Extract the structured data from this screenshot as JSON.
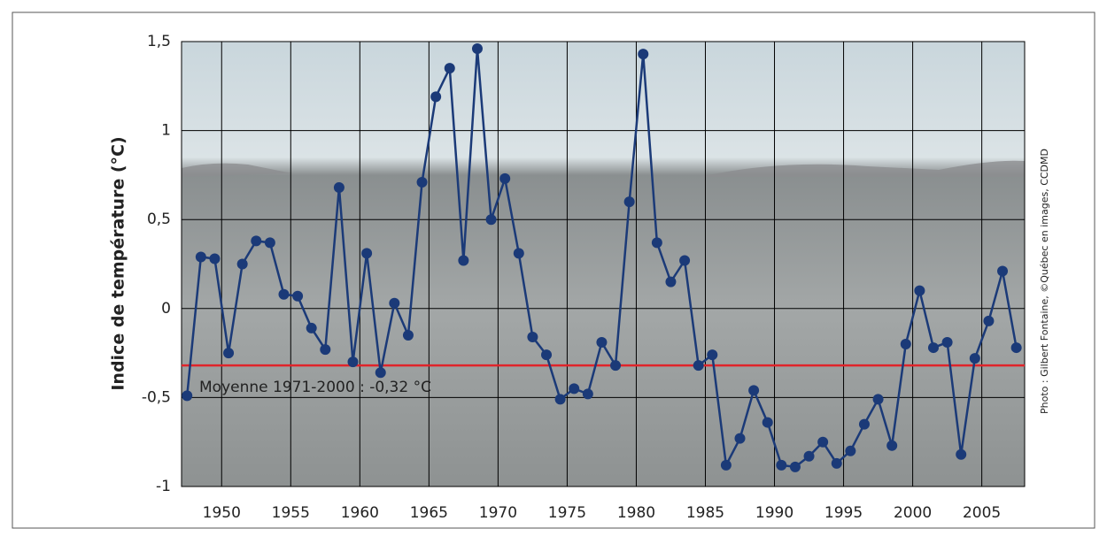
{
  "chart_data": {
    "type": "line",
    "ylabel": "Indice de température (°C)",
    "credit": "Photo : Gilbert Fontaine, ©Québec en images, CCDMD",
    "x": [
      1947.5,
      1948.5,
      1949.5,
      1950.5,
      1951.5,
      1952.5,
      1953.5,
      1954.5,
      1955.5,
      1956.5,
      1957.5,
      1958.5,
      1959.5,
      1960.5,
      1961.5,
      1962.5,
      1963.5,
      1964.5,
      1965.5,
      1966.5,
      1967.5,
      1968.5,
      1969.5,
      1970.5,
      1971.5,
      1972.5,
      1973.5,
      1974.5,
      1975.5,
      1976.5,
      1977.5,
      1978.5,
      1979.5,
      1980.5,
      1981.5,
      1982.5,
      1983.5,
      1984.5,
      1985.5,
      1986.5,
      1987.5,
      1988.5,
      1989.5,
      1990.5,
      1991.5,
      1992.5,
      1993.5,
      1994.5,
      1995.5,
      1996.5,
      1997.5,
      1998.5,
      1999.5,
      2000.5,
      2001.5,
      2002.5,
      2003.5,
      2004.5,
      2005.5,
      2006.5,
      2007.5
    ],
    "series": [
      {
        "color": "#1b3a78",
        "values": [
          -0.49,
          0.29,
          0.28,
          -0.25,
          0.25,
          0.38,
          0.37,
          0.08,
          0.07,
          -0.11,
          -0.23,
          0.68,
          -0.3,
          0.31,
          -0.36,
          0.03,
          -0.15,
          0.71,
          1.19,
          1.35,
          0.27,
          1.46,
          0.5,
          0.73,
          0.31,
          -0.16,
          -0.26,
          -0.51,
          -0.45,
          -0.48,
          -0.19,
          -0.32,
          0.6,
          1.43,
          0.37,
          0.15,
          0.27,
          -0.32,
          -0.26,
          -0.88,
          -0.73,
          -0.46,
          -0.64,
          -0.88,
          -0.89,
          -0.83,
          -0.75,
          -0.87,
          -0.8,
          -0.65,
          -0.51,
          -0.77,
          -0.2,
          0.1,
          -0.22,
          -0.19,
          -0.82,
          -0.28,
          -0.07,
          0.21,
          -0.22
        ]
      }
    ],
    "mean": {
      "value": -0.32,
      "label": "Moyenne 1971-2000 : -0,32 °C",
      "color": "#e0242a"
    },
    "xlim": [
      1947.1,
      2008.1
    ],
    "xticks": [
      1950,
      1955,
      1960,
      1965,
      1970,
      1975,
      1980,
      1985,
      1990,
      1995,
      2000,
      2005
    ],
    "ylim": [
      -1,
      1.5
    ],
    "yticks": [
      -1,
      {
        "value": -0.5,
        "label": "-0,5"
      },
      0,
      {
        "value": 0.5,
        "label": "0,5"
      },
      1,
      {
        "value": 1.5,
        "label": "1,5"
      }
    ],
    "grid": true
  }
}
